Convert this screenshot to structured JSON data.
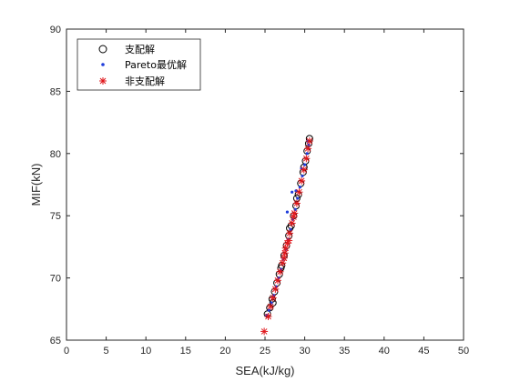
{
  "chart_data": {
    "type": "scatter",
    "xlabel": "SEA(kJ/kg)",
    "ylabel": "MIF(kN)",
    "xlim": [
      0,
      50
    ],
    "ylim": [
      65,
      90
    ],
    "xticks": [
      "0",
      "5",
      "10",
      "15",
      "20",
      "25",
      "30",
      "35",
      "40",
      "45",
      "50"
    ],
    "yticks": [
      "65",
      "70",
      "75",
      "80",
      "85",
      "90"
    ],
    "grid": false,
    "legend_position": "top-left",
    "series": [
      {
        "name": "支配解",
        "marker": "circle-open",
        "color": "#000000",
        "points": [
          [
            25.3,
            67.1
          ],
          [
            25.6,
            67.6
          ],
          [
            25.9,
            68.3
          ],
          [
            26.2,
            68.9
          ],
          [
            26.5,
            69.6
          ],
          [
            26.8,
            70.3
          ],
          [
            27.1,
            71.0
          ],
          [
            27.4,
            71.8
          ],
          [
            27.7,
            72.6
          ],
          [
            28.0,
            73.4
          ],
          [
            28.3,
            74.2
          ],
          [
            28.6,
            75.0
          ],
          [
            28.9,
            75.8
          ],
          [
            29.2,
            76.7
          ],
          [
            29.5,
            77.6
          ],
          [
            29.8,
            78.5
          ],
          [
            30.1,
            79.4
          ],
          [
            30.3,
            80.2
          ],
          [
            30.5,
            80.8
          ],
          [
            30.6,
            81.2
          ],
          [
            26.0,
            68.0
          ],
          [
            27.0,
            70.8
          ],
          [
            28.1,
            74.0
          ],
          [
            29.0,
            76.4
          ],
          [
            29.9,
            78.9
          ]
        ]
      },
      {
        "name": "Pareto最优解",
        "marker": "dot",
        "color": "#1f3ddb",
        "points": [
          [
            25.2,
            67.0
          ],
          [
            25.5,
            67.4
          ],
          [
            25.8,
            68.0
          ],
          [
            26.1,
            68.6
          ],
          [
            26.4,
            69.3
          ],
          [
            26.7,
            70.0
          ],
          [
            27.0,
            70.7
          ],
          [
            27.3,
            71.5
          ],
          [
            27.6,
            72.3
          ],
          [
            27.9,
            73.1
          ],
          [
            28.2,
            73.9
          ],
          [
            28.5,
            74.7
          ],
          [
            28.8,
            75.5
          ],
          [
            29.1,
            76.4
          ],
          [
            29.4,
            77.3
          ],
          [
            29.7,
            78.2
          ],
          [
            30.0,
            79.1
          ],
          [
            30.3,
            80.0
          ],
          [
            30.5,
            80.7
          ],
          [
            27.8,
            75.3
          ],
          [
            28.4,
            76.9
          ],
          [
            29.6,
            78.8
          ],
          [
            30.4,
            81.0
          ],
          [
            28.9,
            77.0
          ]
        ]
      },
      {
        "name": "非支配解",
        "marker": "star",
        "color": "#e0161b",
        "points": [
          [
            24.9,
            65.7
          ],
          [
            25.4,
            66.9
          ],
          [
            25.7,
            67.7
          ],
          [
            26.0,
            68.4
          ],
          [
            26.3,
            69.1
          ],
          [
            26.6,
            69.8
          ],
          [
            26.9,
            70.5
          ],
          [
            27.2,
            71.2
          ],
          [
            27.5,
            72.0
          ],
          [
            27.8,
            72.8
          ],
          [
            28.1,
            73.6
          ],
          [
            28.4,
            74.4
          ],
          [
            28.7,
            75.2
          ],
          [
            29.0,
            76.0
          ],
          [
            29.3,
            76.9
          ],
          [
            29.6,
            77.8
          ],
          [
            29.9,
            78.7
          ],
          [
            30.2,
            79.6
          ],
          [
            30.4,
            80.4
          ],
          [
            30.6,
            81.0
          ],
          [
            27.6,
            72.4
          ],
          [
            28.0,
            73.0
          ],
          [
            27.4,
            71.6
          ],
          [
            28.6,
            74.9
          ]
        ]
      }
    ]
  }
}
